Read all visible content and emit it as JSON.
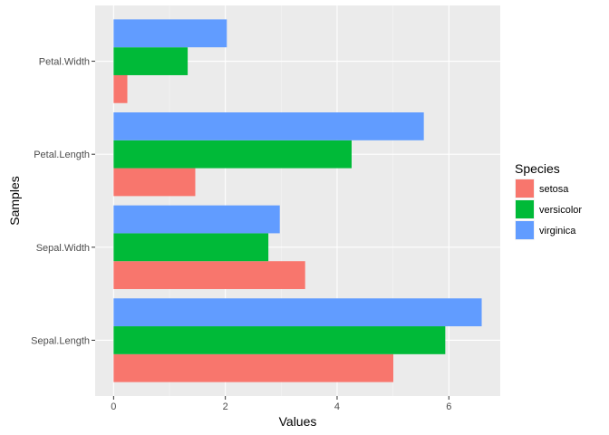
{
  "chart_data": {
    "type": "bar",
    "orientation": "horizontal",
    "categories": [
      "Sepal.Length",
      "Sepal.Width",
      "Petal.Length",
      "Petal.Width"
    ],
    "series": [
      {
        "name": "setosa",
        "color": "#F8766D",
        "values": [
          5.006,
          3.428,
          1.462,
          0.246
        ]
      },
      {
        "name": "versicolor",
        "color": "#00BA38",
        "values": [
          5.936,
          2.77,
          4.26,
          1.326
        ]
      },
      {
        "name": "virginica",
        "color": "#619CFF",
        "values": [
          6.588,
          2.974,
          5.552,
          2.026
        ]
      }
    ],
    "xlabel": "Values",
    "ylabel": "Samples",
    "xlim": [
      -0.33,
      6.92
    ],
    "xticks": [
      0,
      2,
      4,
      6
    ],
    "grid": true,
    "legend": {
      "title": "Species",
      "position": "right"
    }
  }
}
